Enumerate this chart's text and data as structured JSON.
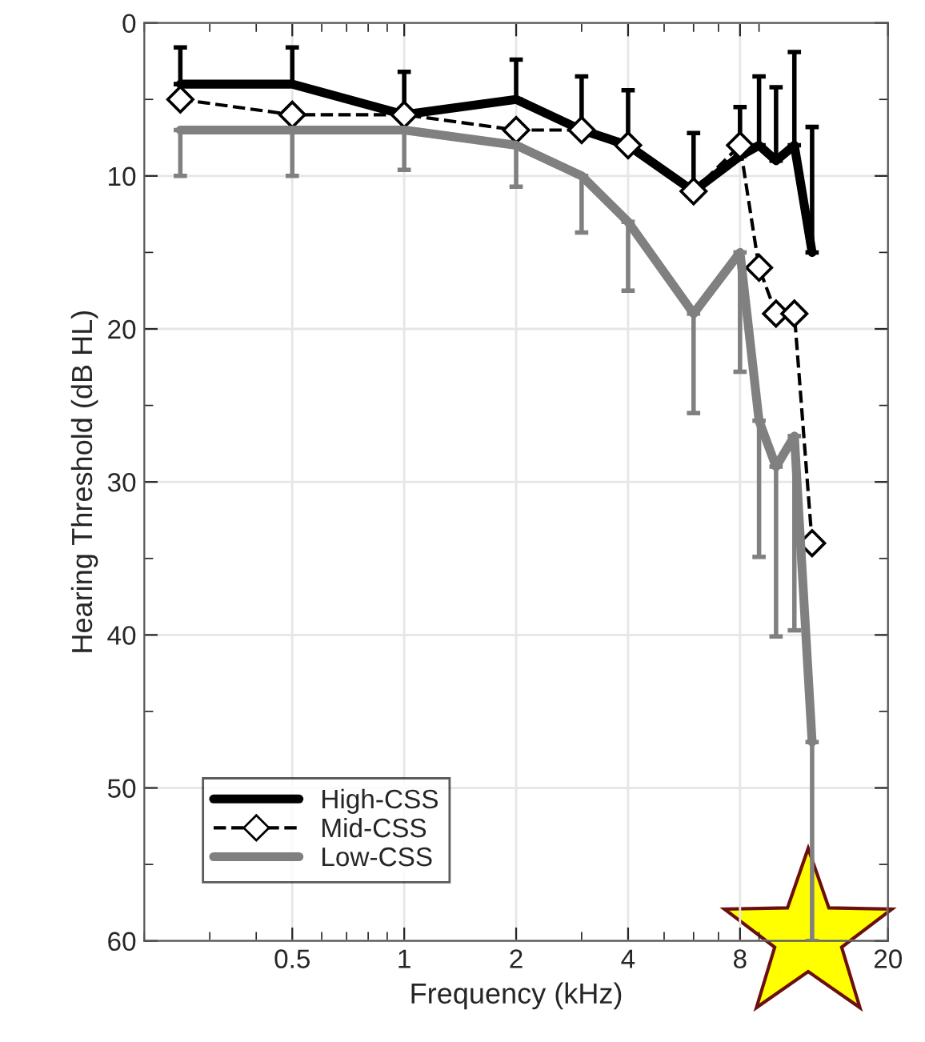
{
  "chart_data": {
    "type": "line",
    "xlabel": "Frequency (kHz)",
    "ylabel": "Hearing Threshold (dB HL)",
    "log": "x",
    "xlim": [
      0.2,
      20
    ],
    "xticks": [
      0.5,
      1,
      2,
      4,
      8,
      20
    ],
    "ylim": [
      60,
      0
    ],
    "yticks": [
      0,
      {
        "value": 5,
        "label": null
      },
      10,
      {
        "value": 15,
        "label": null
      },
      20,
      {
        "value": 25,
        "label": null
      },
      30,
      {
        "value": 35,
        "label": null
      },
      40,
      {
        "value": 45,
        "label": null
      },
      50,
      {
        "value": 55,
        "label": null
      },
      60
    ],
    "grid": true,
    "legend": "bottom left",
    "series": [
      {
        "name": "High-CSS",
        "color": "#000000",
        "line_style": "solid",
        "marker": "none",
        "x": [
          0.25,
          0.5,
          1,
          2,
          3,
          4,
          6,
          8,
          9,
          10,
          11.2,
          12.5
        ],
        "values": [
          4,
          4,
          6,
          5,
          7,
          8,
          11,
          8.7,
          8,
          9,
          8,
          15
        ],
        "errors": [
          [
            1.6,
            4
          ],
          [
            1.6,
            4
          ],
          [
            3.2,
            6
          ],
          [
            2.4,
            5
          ],
          [
            3.5,
            7
          ],
          [
            4.4,
            8
          ],
          [
            7.2,
            11
          ],
          [
            5.5,
            8.7
          ],
          [
            3.5,
            8
          ],
          [
            4.2,
            9
          ],
          [
            1.9,
            8
          ],
          [
            6.8,
            15
          ]
        ]
      },
      {
        "name": "Mid-CSS",
        "color": "#000000",
        "line_style": "dashed",
        "marker": "diamond",
        "x": [
          0.25,
          0.5,
          1,
          2,
          3,
          4,
          6,
          8,
          9,
          10,
          11.2,
          12.5
        ],
        "values": [
          5,
          6,
          6,
          7,
          7,
          8,
          11,
          8,
          16,
          19,
          19,
          34
        ]
      },
      {
        "name": "Low-CSS",
        "color": "#808080",
        "line_style": "solid",
        "marker": "none",
        "x": [
          0.25,
          0.5,
          1,
          2,
          3,
          4,
          6,
          8,
          9,
          10,
          11.2,
          12.5
        ],
        "values": [
          7,
          7,
          7,
          8,
          10,
          13,
          19,
          15,
          26,
          29,
          27,
          47
        ],
        "errors": [
          [
            7,
            10
          ],
          [
            7,
            10
          ],
          [
            7,
            9.6
          ],
          [
            8,
            10.7
          ],
          [
            10,
            13.7
          ],
          [
            13,
            17.5
          ],
          [
            19,
            25.5
          ],
          [
            15,
            22.8
          ],
          [
            26,
            34.9
          ],
          [
            29,
            40.1
          ],
          [
            27,
            39.7
          ],
          [
            47,
            60
          ]
        ]
      }
    ]
  }
}
